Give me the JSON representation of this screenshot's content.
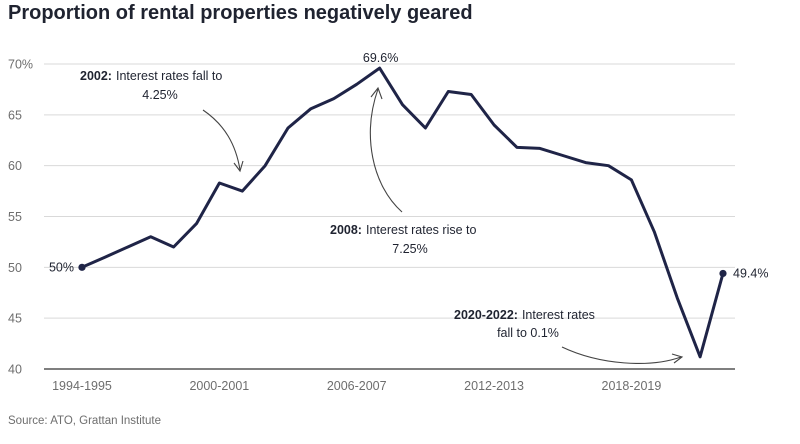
{
  "title": "Proportion of rental properties negatively geared",
  "source": "Source: ATO, Grattan Institute",
  "colors": {
    "line": "#1f2447",
    "grid": "#d9d9d9",
    "text": "#1f2330",
    "muted": "#6e6e6e"
  },
  "chart_data": {
    "type": "line",
    "title": "Proportion of rental properties negatively geared",
    "xlabel": "",
    "ylabel": "",
    "ylim": [
      40,
      70
    ],
    "yticks": [
      {
        "value": 70,
        "label": "70%"
      },
      {
        "value": 65,
        "label": "65"
      },
      {
        "value": 60,
        "label": "60"
      },
      {
        "value": 55,
        "label": "55"
      },
      {
        "value": 50,
        "label": "50"
      },
      {
        "value": 45,
        "label": "45"
      },
      {
        "value": 40,
        "label": "40"
      }
    ],
    "xtick_labels": [
      "1994-1995",
      "2000-2001",
      "2006-2007",
      "2012-2013",
      "2018-2019"
    ],
    "grid": true,
    "series": [
      {
        "values": [
          {
            "x": "1994-1995",
            "y": 50.0
          },
          {
            "x": "1995-1996",
            "y": 51.0
          },
          {
            "x": "1996-1997",
            "y": 52.0
          },
          {
            "x": "1997-1998",
            "y": 53.0
          },
          {
            "x": "1998-1999",
            "y": 52.0
          },
          {
            "x": "1999-2000",
            "y": 54.3
          },
          {
            "x": "2000-2001",
            "y": 58.3
          },
          {
            "x": "2001-2002",
            "y": 57.5
          },
          {
            "x": "2002-2003",
            "y": 60.0
          },
          {
            "x": "2003-2004",
            "y": 63.7
          },
          {
            "x": "2004-2005",
            "y": 65.6
          },
          {
            "x": "2005-2006",
            "y": 66.6
          },
          {
            "x": "2006-2007",
            "y": 68.0
          },
          {
            "x": "2007-2008",
            "y": 69.6
          },
          {
            "x": "2008-2009",
            "y": 66.0
          },
          {
            "x": "2009-2010",
            "y": 63.7
          },
          {
            "x": "2010-2011",
            "y": 67.3
          },
          {
            "x": "2011-2012",
            "y": 67.0
          },
          {
            "x": "2012-2013",
            "y": 64.0
          },
          {
            "x": "2013-2014",
            "y": 61.8
          },
          {
            "x": "2014-2015",
            "y": 61.7
          },
          {
            "x": "2015-2016",
            "y": 61.0
          },
          {
            "x": "2016-2017",
            "y": 60.3
          },
          {
            "x": "2017-2018",
            "y": 60.0
          },
          {
            "x": "2018-2019",
            "y": 58.6
          },
          {
            "x": "2019-2020",
            "y": 53.5
          },
          {
            "x": "2020-2021",
            "y": 47.0
          },
          {
            "x": "2021-2022",
            "y": 41.2
          },
          {
            "x": "2022-2023",
            "y": 49.4
          }
        ]
      }
    ],
    "value_labels": {
      "start": "50%",
      "peak": "69.6%",
      "end": "49.4%"
    },
    "annotations": [
      {
        "bold": "2002:",
        "text": "Interest rates fall to",
        "line2": "4.25%",
        "points_to": "2001-2002"
      },
      {
        "bold": "2008:",
        "text": "Interest rates rise to",
        "line2": "7.25%",
        "points_to": "2007-2008"
      },
      {
        "bold": "2020-2022:",
        "text": "Interest rates",
        "line2": "fall to 0.1%",
        "points_to": "2021-2022"
      }
    ]
  }
}
